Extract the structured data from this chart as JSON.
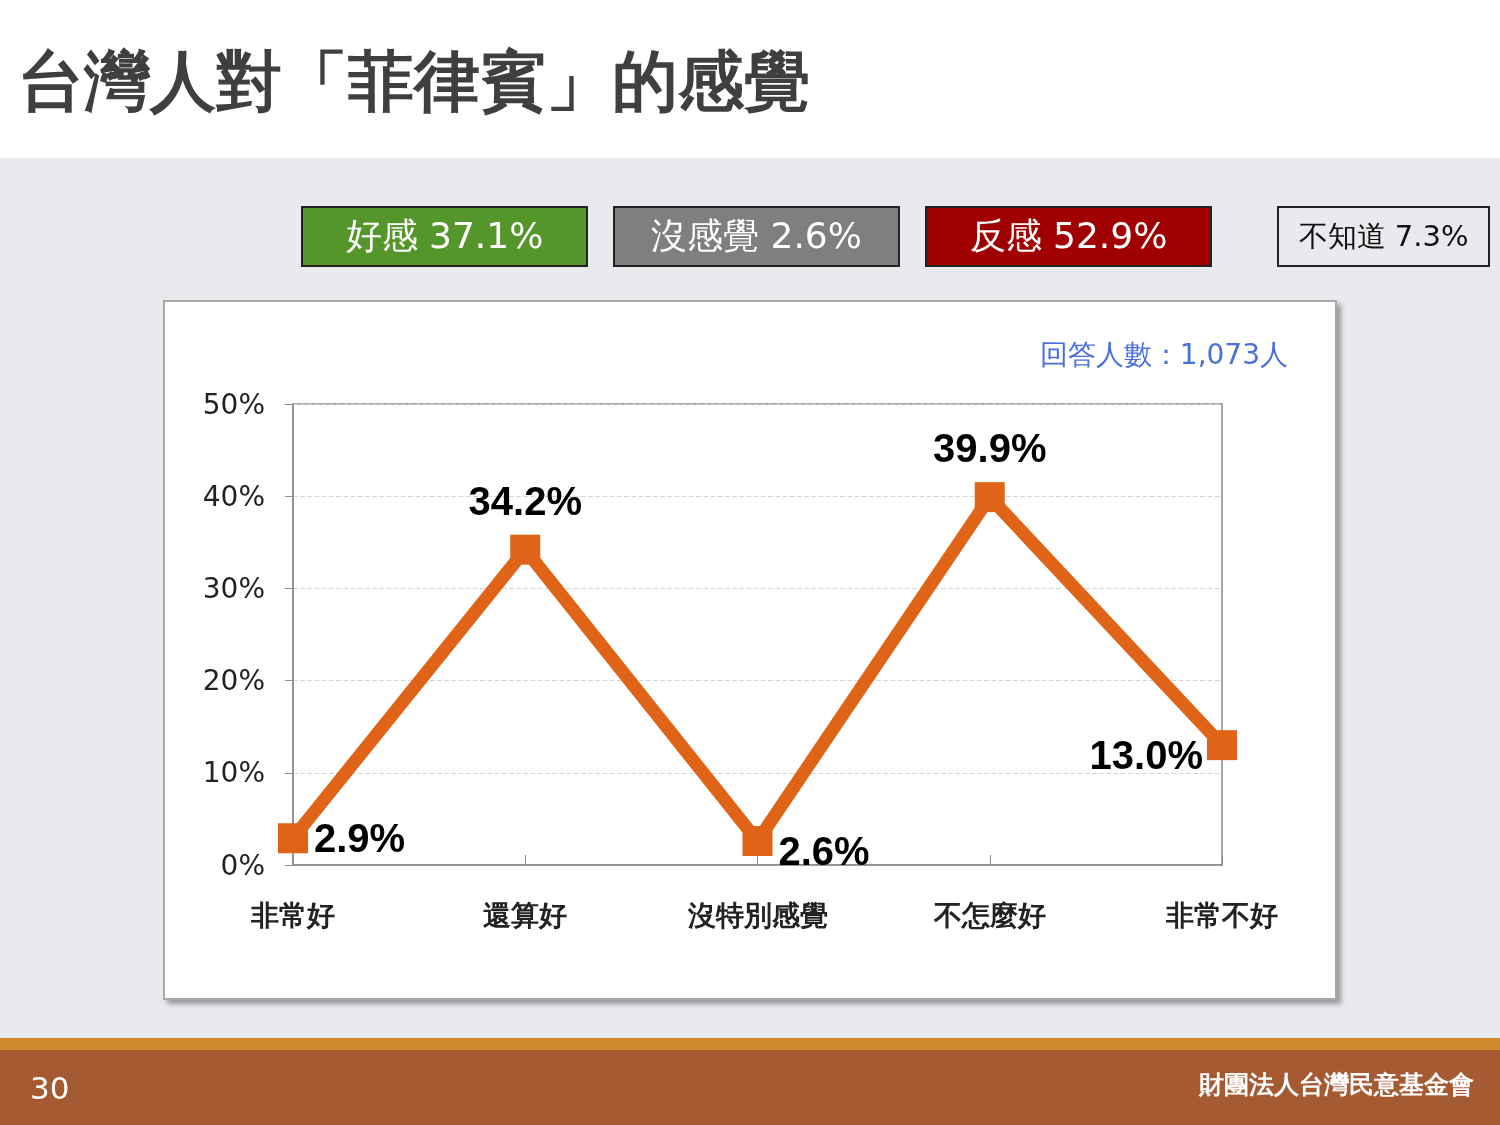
{
  "chart_data": {
    "type": "line",
    "title": "台灣人對「菲律賓」的感覺",
    "categories": [
      "非常好",
      "還算好",
      "沒特別感覺",
      "不怎麼好",
      "非常不好"
    ],
    "series": [
      {
        "color": "#e06418",
        "values": [
          2.9,
          34.2,
          2.6,
          39.9,
          13.0
        ],
        "value_labels": [
          "2.9%",
          "34.2%",
          "2.6%",
          "39.9%",
          "13.0%"
        ]
      }
    ],
    "ylim": [
      0,
      50
    ],
    "yticks": [
      {
        "value": 0,
        "label": "0%"
      },
      {
        "value": 10,
        "label": "10%"
      },
      {
        "value": 20,
        "label": "20%"
      },
      {
        "value": 30,
        "label": "30%"
      },
      {
        "value": 40,
        "label": "40%"
      },
      {
        "value": 50,
        "label": "50%"
      }
    ],
    "grid": "y",
    "marker": "square",
    "line_style": "solid",
    "annotations": [
      "好感 37.1%",
      "沒感覺 2.6%",
      "反感 52.9%",
      "不知道 7.3%",
      "回答人數：1,073人",
      "30",
      "財團法人台灣民意基金會"
    ]
  }
}
